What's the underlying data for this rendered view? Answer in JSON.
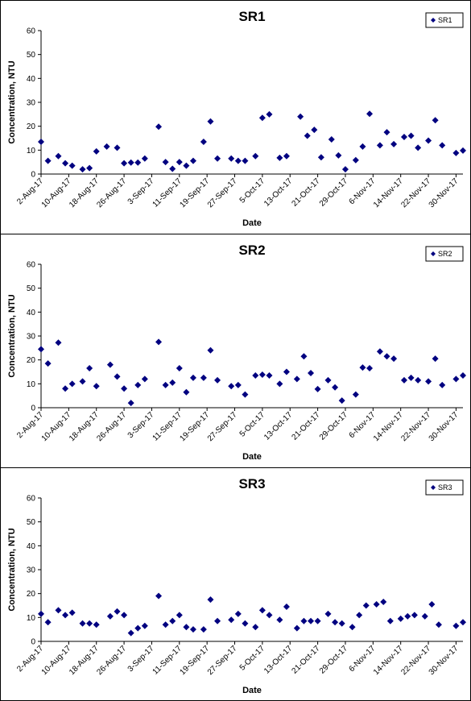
{
  "chart_data": [
    {
      "type": "scatter",
      "title": "SR1",
      "xlabel": "Date",
      "ylabel": "Concentration, NTU",
      "ylim": [
        0,
        60
      ],
      "yticks": [
        0,
        10,
        20,
        30,
        40,
        50,
        60
      ],
      "xlim": [
        "2017-08-02",
        "2017-12-02"
      ],
      "xticks": [
        "2-Aug-17",
        "10-Aug-17",
        "18-Aug-17",
        "26-Aug-17",
        "3-Sep-17",
        "11-Sep-17",
        "19-Sep-17",
        "27-Sep-17",
        "5-Oct-17",
        "13-Oct-17",
        "21-Oct-17",
        "29-Oct-17",
        "6-Nov-17",
        "14-Nov-17",
        "22-Nov-17",
        "30-Nov-17"
      ],
      "grid": false,
      "legend": "top-right",
      "marker_color": "#000080",
      "series": [
        {
          "name": "SR1",
          "points": [
            [
              "2017-08-02",
              13.5
            ],
            [
              "2017-08-04",
              5.5
            ],
            [
              "2017-08-07",
              7.5
            ],
            [
              "2017-08-09",
              4.5
            ],
            [
              "2017-08-11",
              3.5
            ],
            [
              "2017-08-14",
              2
            ],
            [
              "2017-08-16",
              2.5
            ],
            [
              "2017-08-18",
              9.5
            ],
            [
              "2017-08-21",
              11.5
            ],
            [
              "2017-08-24",
              11
            ],
            [
              "2017-08-26",
              4.5
            ],
            [
              "2017-08-28",
              4.8
            ],
            [
              "2017-08-30",
              4.8
            ],
            [
              "2017-09-01",
              6.5
            ],
            [
              "2017-09-05",
              19.8
            ],
            [
              "2017-09-07",
              5
            ],
            [
              "2017-09-09",
              2.2
            ],
            [
              "2017-09-11",
              5
            ],
            [
              "2017-09-13",
              3.5
            ],
            [
              "2017-09-15",
              5.5
            ],
            [
              "2017-09-18",
              13.5
            ],
            [
              "2017-09-20",
              22
            ],
            [
              "2017-09-22",
              6.5
            ],
            [
              "2017-09-26",
              6.5
            ],
            [
              "2017-09-28",
              5.5
            ],
            [
              "2017-09-30",
              5.5
            ],
            [
              "2017-10-03",
              7.5
            ],
            [
              "2017-10-05",
              23.5
            ],
            [
              "2017-10-07",
              25
            ],
            [
              "2017-10-10",
              6.8
            ],
            [
              "2017-10-12",
              7.5
            ],
            [
              "2017-10-16",
              24
            ],
            [
              "2017-10-18",
              16
            ],
            [
              "2017-10-20",
              18.5
            ],
            [
              "2017-10-22",
              7
            ],
            [
              "2017-10-25",
              14.5
            ],
            [
              "2017-10-27",
              7.8
            ],
            [
              "2017-10-29",
              2
            ],
            [
              "2017-11-01",
              5.8
            ],
            [
              "2017-11-03",
              11.5
            ],
            [
              "2017-11-05",
              25.2
            ],
            [
              "2017-11-08",
              12
            ],
            [
              "2017-11-10",
              17.5
            ],
            [
              "2017-11-12",
              12.5
            ],
            [
              "2017-11-15",
              15.5
            ],
            [
              "2017-11-17",
              16
            ],
            [
              "2017-11-19",
              11
            ],
            [
              "2017-11-22",
              14
            ],
            [
              "2017-11-24",
              22.5
            ],
            [
              "2017-11-26",
              12
            ],
            [
              "2017-11-30",
              8.8
            ],
            [
              "2017-12-02",
              9.8
            ]
          ]
        }
      ]
    },
    {
      "type": "scatter",
      "title": "SR2",
      "xlabel": "Date",
      "ylabel": "Concentration, NTU",
      "ylim": [
        0,
        60
      ],
      "yticks": [
        0,
        10,
        20,
        30,
        40,
        50,
        60
      ],
      "xlim": [
        "2017-08-02",
        "2017-12-02"
      ],
      "xticks": [
        "2-Aug-17",
        "10-Aug-17",
        "18-Aug-17",
        "26-Aug-17",
        "3-Sep-17",
        "11-Sep-17",
        "19-Sep-17",
        "27-Sep-17",
        "5-Oct-17",
        "13-Oct-17",
        "21-Oct-17",
        "29-Oct-17",
        "6-Nov-17",
        "14-Nov-17",
        "22-Nov-17",
        "30-Nov-17"
      ],
      "grid": false,
      "legend": "top-right",
      "marker_color": "#000080",
      "series": [
        {
          "name": "SR2",
          "points": [
            [
              "2017-08-02",
              24.5
            ],
            [
              "2017-08-04",
              18.5
            ],
            [
              "2017-08-07",
              27.2
            ],
            [
              "2017-08-09",
              8
            ],
            [
              "2017-08-11",
              10
            ],
            [
              "2017-08-14",
              11
            ],
            [
              "2017-08-16",
              16.5
            ],
            [
              "2017-08-18",
              9
            ],
            [
              "2017-08-22",
              18
            ],
            [
              "2017-08-24",
              13
            ],
            [
              "2017-08-26",
              8
            ],
            [
              "2017-08-28",
              2
            ],
            [
              "2017-08-30",
              9.5
            ],
            [
              "2017-09-01",
              12
            ],
            [
              "2017-09-05",
              27.5
            ],
            [
              "2017-09-07",
              9.5
            ],
            [
              "2017-09-09",
              10.5
            ],
            [
              "2017-09-11",
              16.5
            ],
            [
              "2017-09-13",
              6.5
            ],
            [
              "2017-09-15",
              12.5
            ],
            [
              "2017-09-18",
              12.5
            ],
            [
              "2017-09-20",
              24
            ],
            [
              "2017-09-22",
              11.5
            ],
            [
              "2017-09-26",
              9
            ],
            [
              "2017-09-28",
              9.5
            ],
            [
              "2017-09-30",
              5.5
            ],
            [
              "2017-10-03",
              13.5
            ],
            [
              "2017-10-05",
              13.8
            ],
            [
              "2017-10-07",
              13.5
            ],
            [
              "2017-10-10",
              10
            ],
            [
              "2017-10-12",
              15
            ],
            [
              "2017-10-15",
              12
            ],
            [
              "2017-10-17",
              21.5
            ],
            [
              "2017-10-19",
              14.5
            ],
            [
              "2017-10-21",
              7.8
            ],
            [
              "2017-10-24",
              11.5
            ],
            [
              "2017-10-26",
              8.5
            ],
            [
              "2017-10-28",
              3
            ],
            [
              "2017-11-01",
              5.5
            ],
            [
              "2017-11-03",
              16.8
            ],
            [
              "2017-11-05",
              16.5
            ],
            [
              "2017-11-08",
              23.5
            ],
            [
              "2017-11-10",
              21.5
            ],
            [
              "2017-11-12",
              20.5
            ],
            [
              "2017-11-15",
              11.5
            ],
            [
              "2017-11-17",
              12.5
            ],
            [
              "2017-11-19",
              11.5
            ],
            [
              "2017-11-22",
              11
            ],
            [
              "2017-11-24",
              20.5
            ],
            [
              "2017-11-26",
              9.5
            ],
            [
              "2017-11-30",
              12
            ],
            [
              "2017-12-02",
              13.5
            ]
          ]
        }
      ]
    },
    {
      "type": "scatter",
      "title": "SR3",
      "xlabel": "Date",
      "ylabel": "Concentration, NTU",
      "ylim": [
        0,
        60
      ],
      "yticks": [
        0,
        10,
        20,
        30,
        40,
        50,
        60
      ],
      "xlim": [
        "2017-08-02",
        "2017-12-02"
      ],
      "xticks": [
        "2-Aug-17",
        "10-Aug-17",
        "18-Aug-17",
        "26-Aug-17",
        "3-Sep-17",
        "11-Sep-17",
        "19-Sep-17",
        "27-Sep-17",
        "5-Oct-17",
        "13-Oct-17",
        "21-Oct-17",
        "29-Oct-17",
        "6-Nov-17",
        "14-Nov-17",
        "22-Nov-17",
        "30-Nov-17"
      ],
      "grid": false,
      "legend": "top-right",
      "marker_color": "#000080",
      "series": [
        {
          "name": "SR3",
          "points": [
            [
              "2017-08-02",
              11.5
            ],
            [
              "2017-08-04",
              8
            ],
            [
              "2017-08-07",
              13
            ],
            [
              "2017-08-09",
              11
            ],
            [
              "2017-08-11",
              12
            ],
            [
              "2017-08-14",
              7.5
            ],
            [
              "2017-08-16",
              7.5
            ],
            [
              "2017-08-18",
              7
            ],
            [
              "2017-08-22",
              10.5
            ],
            [
              "2017-08-24",
              12.5
            ],
            [
              "2017-08-26",
              11
            ],
            [
              "2017-08-28",
              3.5
            ],
            [
              "2017-08-30",
              5.5
            ],
            [
              "2017-09-01",
              6.5
            ],
            [
              "2017-09-05",
              19
            ],
            [
              "2017-09-07",
              7
            ],
            [
              "2017-09-09",
              8.5
            ],
            [
              "2017-09-11",
              11
            ],
            [
              "2017-09-13",
              6
            ],
            [
              "2017-09-15",
              5
            ],
            [
              "2017-09-18",
              5
            ],
            [
              "2017-09-20",
              17.5
            ],
            [
              "2017-09-22",
              8.5
            ],
            [
              "2017-09-26",
              9
            ],
            [
              "2017-09-28",
              11.5
            ],
            [
              "2017-09-30",
              7.5
            ],
            [
              "2017-10-03",
              6
            ],
            [
              "2017-10-05",
              13
            ],
            [
              "2017-10-07",
              11
            ],
            [
              "2017-10-10",
              9
            ],
            [
              "2017-10-12",
              14.5
            ],
            [
              "2017-10-15",
              5.5
            ],
            [
              "2017-10-17",
              8.5
            ],
            [
              "2017-10-19",
              8.5
            ],
            [
              "2017-10-21",
              8.5
            ],
            [
              "2017-10-24",
              11.5
            ],
            [
              "2017-10-26",
              8
            ],
            [
              "2017-10-28",
              7.5
            ],
            [
              "2017-10-31",
              6
            ],
            [
              "2017-11-02",
              11
            ],
            [
              "2017-11-04",
              15
            ],
            [
              "2017-11-07",
              15.5
            ],
            [
              "2017-11-09",
              16.5
            ],
            [
              "2017-11-11",
              8.5
            ],
            [
              "2017-11-14",
              9.5
            ],
            [
              "2017-11-16",
              10.5
            ],
            [
              "2017-11-18",
              11
            ],
            [
              "2017-11-21",
              10.5
            ],
            [
              "2017-11-23",
              15.5
            ],
            [
              "2017-11-25",
              7
            ],
            [
              "2017-11-30",
              6.5
            ],
            [
              "2017-12-02",
              8
            ]
          ]
        }
      ]
    }
  ]
}
